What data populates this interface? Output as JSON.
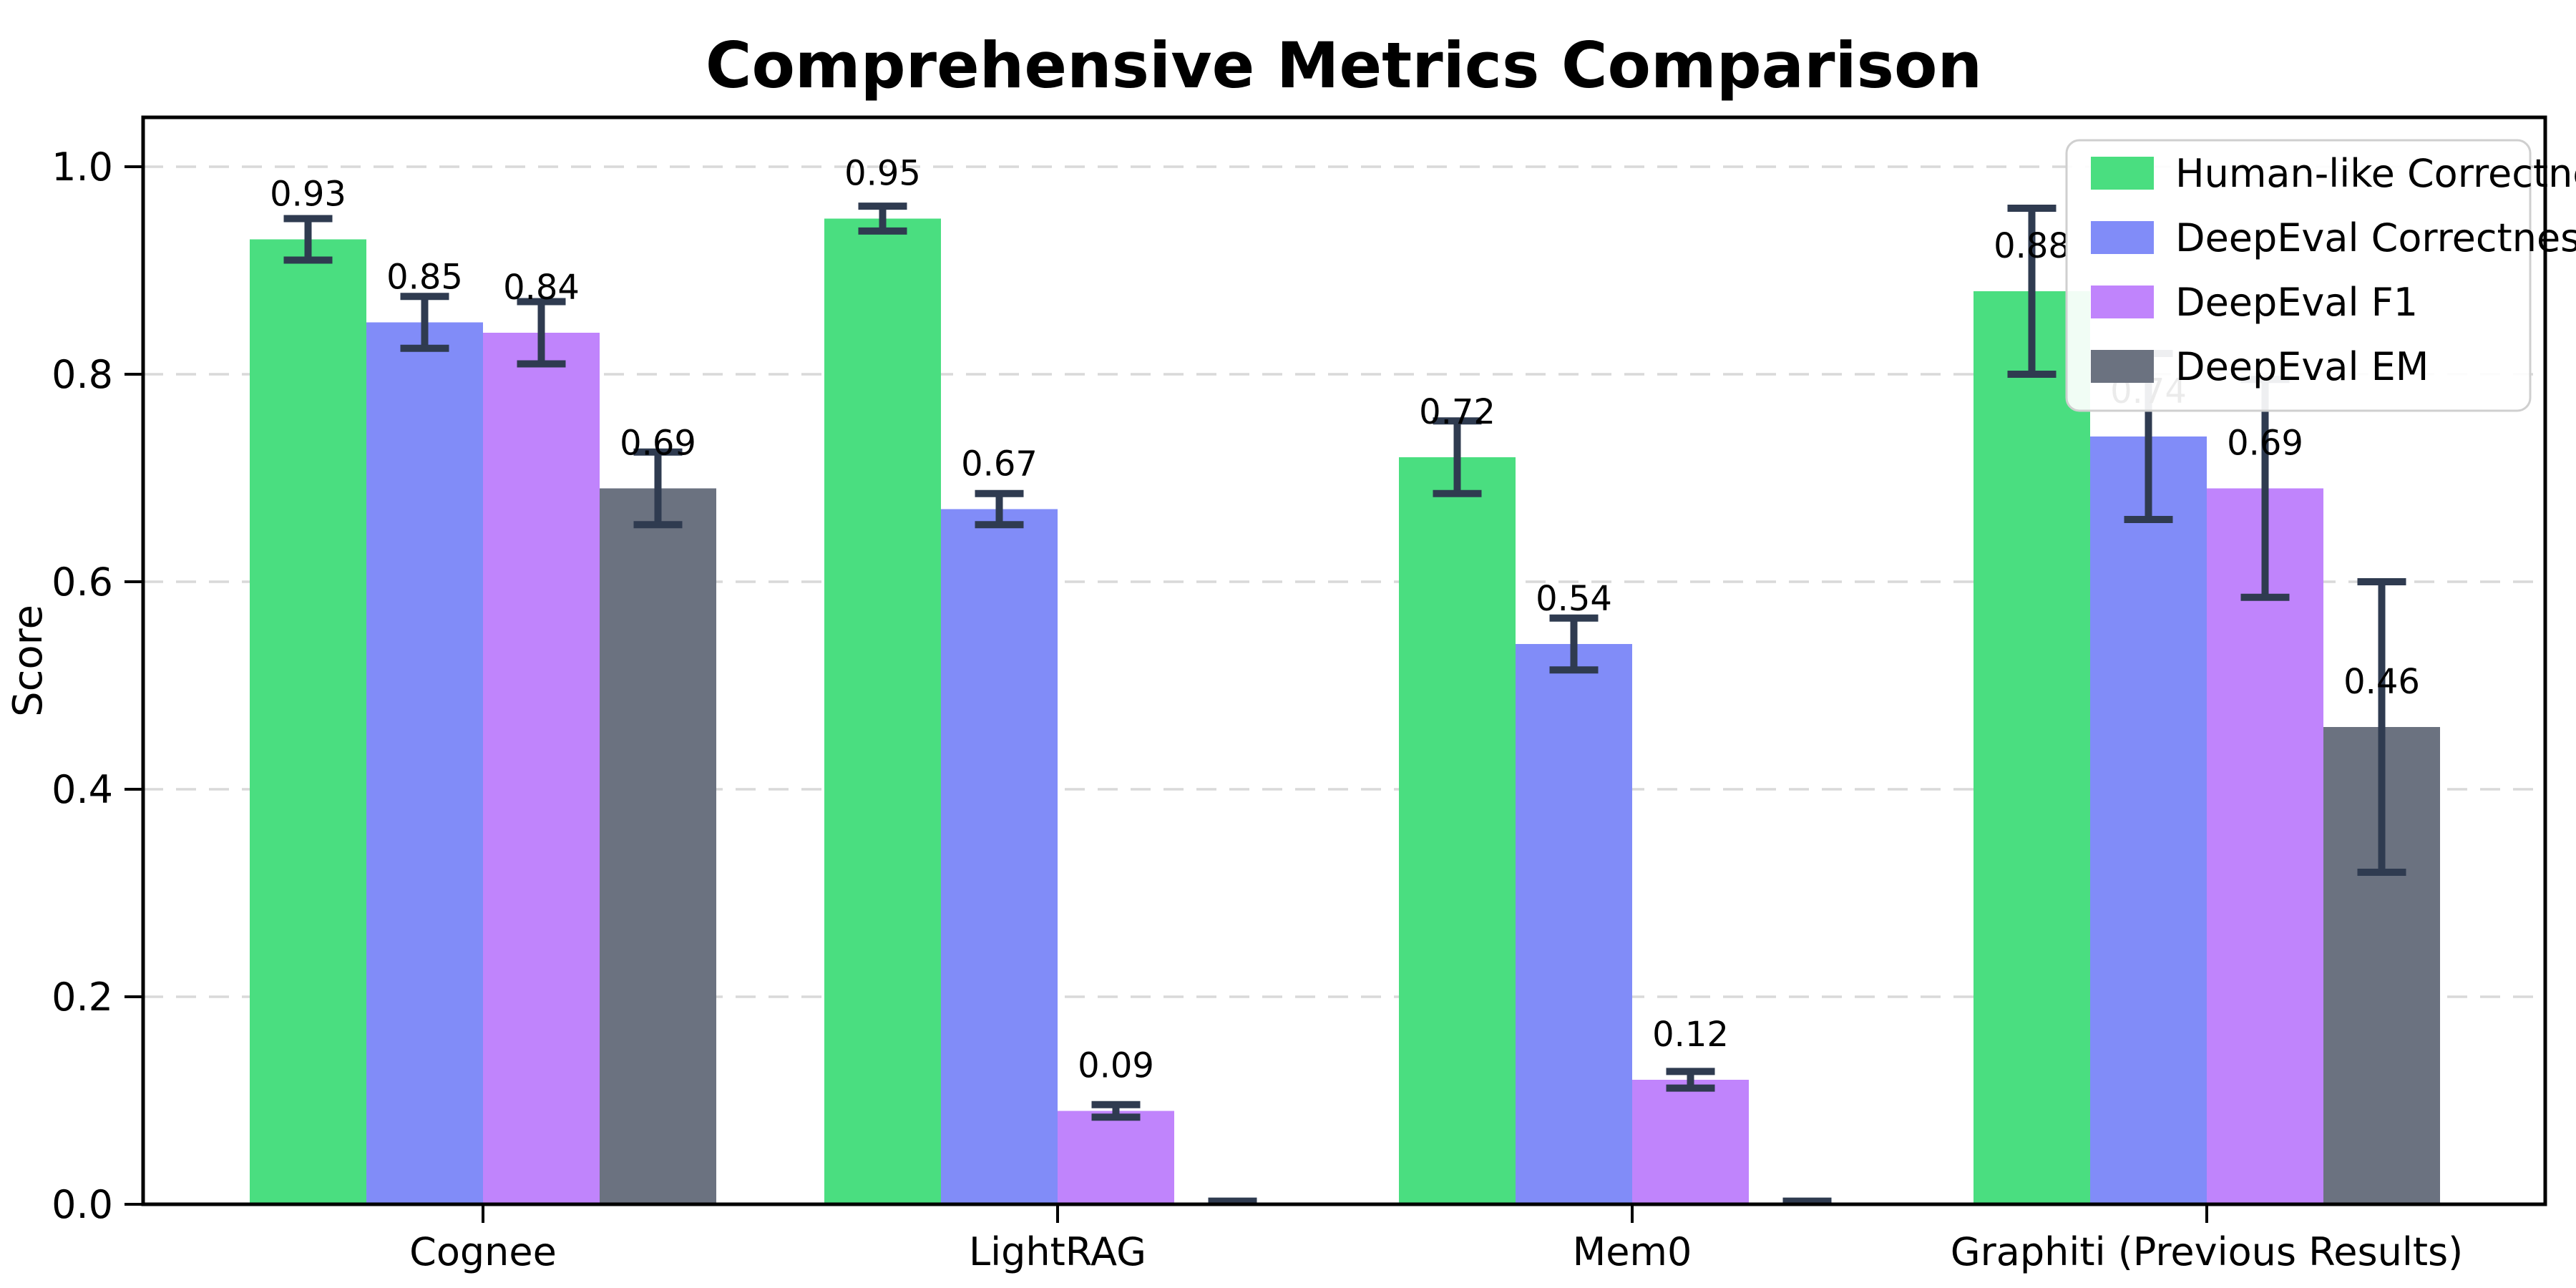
{
  "title": "Comprehensive Metrics Comparison",
  "chart_data": {
    "type": "bar",
    "title": "Comprehensive Metrics Comparison",
    "xlabel": "",
    "ylabel": "Score",
    "categories": [
      "Cognee",
      "LightRAG",
      "Mem0",
      "Graphiti (Previous Results)"
    ],
    "series": [
      {
        "name": "Human-like Correctness",
        "color": "#4ade80",
        "values": [
          0.93,
          0.95,
          0.72,
          0.88
        ],
        "errors": [
          0.02,
          0.012,
          0.035,
          0.08
        ],
        "labels": [
          "0.93",
          "0.95",
          "0.72",
          "0.88"
        ]
      },
      {
        "name": "DeepEval Correctness",
        "color": "#818cf8",
        "values": [
          0.85,
          0.67,
          0.54,
          0.74
        ],
        "errors": [
          0.025,
          0.015,
          0.025,
          0.08
        ],
        "labels": [
          "0.85",
          "0.67",
          "0.54",
          "0.74"
        ]
      },
      {
        "name": "DeepEval F1",
        "color": "#c084fc",
        "values": [
          0.84,
          0.09,
          0.12,
          0.69
        ],
        "errors": [
          0.03,
          0.006,
          0.008,
          0.105
        ],
        "labels": [
          "0.84",
          "0.09",
          "0.12",
          "0.69"
        ]
      },
      {
        "name": "DeepEval EM",
        "color": "#6b7280",
        "values": [
          0.69,
          0.0,
          0.0,
          0.46
        ],
        "errors": [
          0.035,
          0.003,
          0.003,
          0.14
        ],
        "labels": [
          "0.69",
          "",
          "",
          "0.46"
        ]
      }
    ],
    "y_ticks": [
      {
        "value": 0.0,
        "label": "0.0"
      },
      {
        "value": 0.2,
        "label": "0.2"
      },
      {
        "value": 0.4,
        "label": "0.4"
      },
      {
        "value": 0.6,
        "label": "0.6"
      },
      {
        "value": 0.8,
        "label": "0.8"
      },
      {
        "value": 1.0,
        "label": "1.0"
      }
    ],
    "ylim": [
      0,
      1.048
    ],
    "grid": {
      "horizontal": true,
      "style": "dashed",
      "color": "#d9d9d9"
    },
    "legend_position": "upper right",
    "colors": {
      "error_bar": "#2f3b50",
      "axis": "#000000",
      "text": "#000000",
      "legend_border": "#cfcfcf",
      "legend_background": "#ffffff"
    }
  }
}
